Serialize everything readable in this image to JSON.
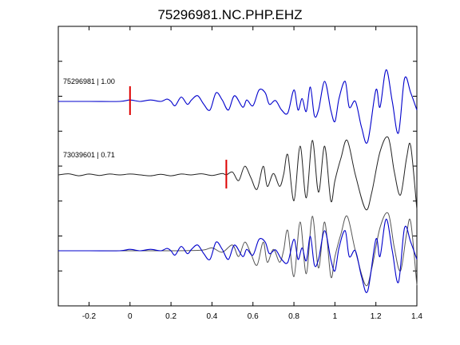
{
  "chart_data": {
    "type": "line",
    "title": "75296981.NC.PHP.EHZ",
    "xlabel": "",
    "ylabel": "",
    "xlim": [
      -0.35,
      1.4
    ],
    "x_ticks": [
      -0.2,
      0,
      0.2,
      0.4,
      0.6,
      0.8,
      1,
      1.2,
      1.4
    ],
    "x_tick_labels": [
      "-0.2",
      "0",
      "0.2",
      "0.4",
      "0.6",
      "0.8",
      "1",
      "1.2",
      "1.4"
    ],
    "y_tick_count": 7,
    "grid": false,
    "traces": [
      {
        "label": "75296981 | 1.00",
        "color": "#0000cc",
        "pick_x": 0.0,
        "pick_color": "#dd0000",
        "samples": [
          [
            -0.35,
            0
          ],
          [
            -0.2,
            0
          ],
          [
            -0.05,
            0
          ],
          [
            0.0,
            0.5
          ],
          [
            0.05,
            0
          ],
          [
            0.1,
            0.5
          ],
          [
            0.15,
            0
          ],
          [
            0.18,
            0.8
          ],
          [
            0.2,
            0
          ],
          [
            0.22,
            -1.5
          ],
          [
            0.25,
            1.5
          ],
          [
            0.28,
            -1
          ],
          [
            0.3,
            0.5
          ],
          [
            0.33,
            2
          ],
          [
            0.36,
            -1
          ],
          [
            0.39,
            -3
          ],
          [
            0.42,
            3
          ],
          [
            0.45,
            0.5
          ],
          [
            0.48,
            -3
          ],
          [
            0.51,
            2
          ],
          [
            0.55,
            -2
          ],
          [
            0.57,
            0.5
          ],
          [
            0.6,
            -1.5
          ],
          [
            0.63,
            4
          ],
          [
            0.66,
            3
          ],
          [
            0.68,
            -1
          ],
          [
            0.71,
            0.3
          ],
          [
            0.74,
            -3
          ],
          [
            0.77,
            -4
          ],
          [
            0.8,
            4
          ],
          [
            0.82,
            -3
          ],
          [
            0.84,
            1
          ],
          [
            0.86,
            -3.5
          ],
          [
            0.88,
            5
          ],
          [
            0.9,
            -5
          ],
          [
            0.92,
            -3
          ],
          [
            0.95,
            7
          ],
          [
            0.98,
            -3
          ],
          [
            1.0,
            -7
          ],
          [
            1.02,
            1
          ],
          [
            1.05,
            7
          ],
          [
            1.07,
            -2
          ],
          [
            1.1,
            0
          ],
          [
            1.13,
            -9
          ],
          [
            1.16,
            -14
          ],
          [
            1.2,
            4
          ],
          [
            1.22,
            -2
          ],
          [
            1.25,
            11
          ],
          [
            1.28,
            0
          ],
          [
            1.31,
            -11
          ],
          [
            1.34,
            8
          ],
          [
            1.37,
            3
          ],
          [
            1.4,
            -3
          ]
        ]
      },
      {
        "label": "73039601 | 0.71",
        "color": "#222222",
        "pick_x": 0.47,
        "pick_color": "#dd0000",
        "samples": [
          [
            -0.35,
            0
          ],
          [
            -0.3,
            0.4
          ],
          [
            -0.25,
            -0.3
          ],
          [
            -0.2,
            0.3
          ],
          [
            -0.15,
            -0.2
          ],
          [
            -0.1,
            0.3
          ],
          [
            -0.05,
            0
          ],
          [
            0.0,
            0.3
          ],
          [
            0.05,
            0
          ],
          [
            0.1,
            -0.3
          ],
          [
            0.15,
            0.2
          ],
          [
            0.2,
            -0.3
          ],
          [
            0.25,
            0.3
          ],
          [
            0.3,
            0
          ],
          [
            0.35,
            0.4
          ],
          [
            0.4,
            -0.2
          ],
          [
            0.45,
            0.5
          ],
          [
            0.47,
            0
          ],
          [
            0.5,
            1
          ],
          [
            0.53,
            -2
          ],
          [
            0.56,
            3
          ],
          [
            0.59,
            -1
          ],
          [
            0.62,
            -5
          ],
          [
            0.65,
            3
          ],
          [
            0.67,
            -4
          ],
          [
            0.7,
            0.5
          ],
          [
            0.73,
            -4
          ],
          [
            0.75,
            0.2
          ],
          [
            0.77,
            7
          ],
          [
            0.8,
            -9
          ],
          [
            0.83,
            10
          ],
          [
            0.86,
            -8
          ],
          [
            0.89,
            12
          ],
          [
            0.92,
            -6
          ],
          [
            0.95,
            10
          ],
          [
            0.98,
            -9
          ],
          [
            1.0,
            -2
          ],
          [
            1.03,
            6
          ],
          [
            1.06,
            12
          ],
          [
            1.1,
            0
          ],
          [
            1.15,
            -12
          ],
          [
            1.18,
            -6
          ],
          [
            1.22,
            8
          ],
          [
            1.26,
            13
          ],
          [
            1.29,
            1
          ],
          [
            1.32,
            -7
          ],
          [
            1.35,
            6
          ],
          [
            1.37,
            10
          ],
          [
            1.4,
            -12
          ]
        ]
      },
      {
        "label": "",
        "color": "#555555",
        "overlay_color": "#0000cc",
        "samples_gray": [
          [
            -0.35,
            0
          ],
          [
            -0.2,
            0
          ],
          [
            0.0,
            0
          ],
          [
            0.2,
            0
          ],
          [
            0.35,
            0.2
          ],
          [
            0.4,
            1
          ],
          [
            0.45,
            -0.5
          ],
          [
            0.5,
            2
          ],
          [
            0.53,
            -2
          ],
          [
            0.56,
            3
          ],
          [
            0.59,
            -1
          ],
          [
            0.62,
            -5
          ],
          [
            0.65,
            3
          ],
          [
            0.67,
            -4
          ],
          [
            0.7,
            0.5
          ],
          [
            0.73,
            -4
          ],
          [
            0.75,
            0.2
          ],
          [
            0.77,
            7
          ],
          [
            0.8,
            -9
          ],
          [
            0.83,
            10
          ],
          [
            0.86,
            -8
          ],
          [
            0.89,
            12
          ],
          [
            0.92,
            -6
          ],
          [
            0.95,
            10
          ],
          [
            0.98,
            -9
          ],
          [
            1.0,
            -2
          ],
          [
            1.03,
            6
          ],
          [
            1.06,
            12
          ],
          [
            1.1,
            0
          ],
          [
            1.15,
            -12
          ],
          [
            1.18,
            -6
          ],
          [
            1.22,
            8
          ],
          [
            1.26,
            13
          ],
          [
            1.29,
            1
          ],
          [
            1.32,
            -7
          ],
          [
            1.35,
            6
          ],
          [
            1.37,
            10
          ],
          [
            1.4,
            -12
          ]
        ],
        "samples_blue": [
          [
            -0.35,
            0
          ],
          [
            -0.2,
            0
          ],
          [
            -0.05,
            0
          ],
          [
            0.0,
            0.5
          ],
          [
            0.05,
            0
          ],
          [
            0.1,
            0.5
          ],
          [
            0.15,
            0
          ],
          [
            0.18,
            0.8
          ],
          [
            0.2,
            0
          ],
          [
            0.22,
            -1.5
          ],
          [
            0.25,
            1.5
          ],
          [
            0.28,
            -1
          ],
          [
            0.3,
            0.5
          ],
          [
            0.33,
            2
          ],
          [
            0.36,
            -1
          ],
          [
            0.39,
            -3
          ],
          [
            0.42,
            3
          ],
          [
            0.45,
            0.5
          ],
          [
            0.48,
            -3
          ],
          [
            0.51,
            2
          ],
          [
            0.55,
            -2
          ],
          [
            0.57,
            0.5
          ],
          [
            0.6,
            -1.5
          ],
          [
            0.63,
            4
          ],
          [
            0.66,
            3
          ],
          [
            0.68,
            -1
          ],
          [
            0.71,
            0.3
          ],
          [
            0.74,
            -3
          ],
          [
            0.77,
            -4
          ],
          [
            0.8,
            4
          ],
          [
            0.82,
            -3
          ],
          [
            0.84,
            1
          ],
          [
            0.86,
            -3.5
          ],
          [
            0.88,
            5
          ],
          [
            0.9,
            -5
          ],
          [
            0.92,
            -3
          ],
          [
            0.95,
            7
          ],
          [
            0.98,
            -3
          ],
          [
            1.0,
            -7
          ],
          [
            1.02,
            1
          ],
          [
            1.05,
            7
          ],
          [
            1.07,
            -2
          ],
          [
            1.1,
            0
          ],
          [
            1.13,
            -9
          ],
          [
            1.16,
            -14
          ],
          [
            1.2,
            4
          ],
          [
            1.22,
            -2
          ],
          [
            1.25,
            11
          ],
          [
            1.28,
            0
          ],
          [
            1.31,
            -11
          ],
          [
            1.34,
            8
          ],
          [
            1.37,
            3
          ],
          [
            1.4,
            -3
          ]
        ]
      }
    ]
  }
}
